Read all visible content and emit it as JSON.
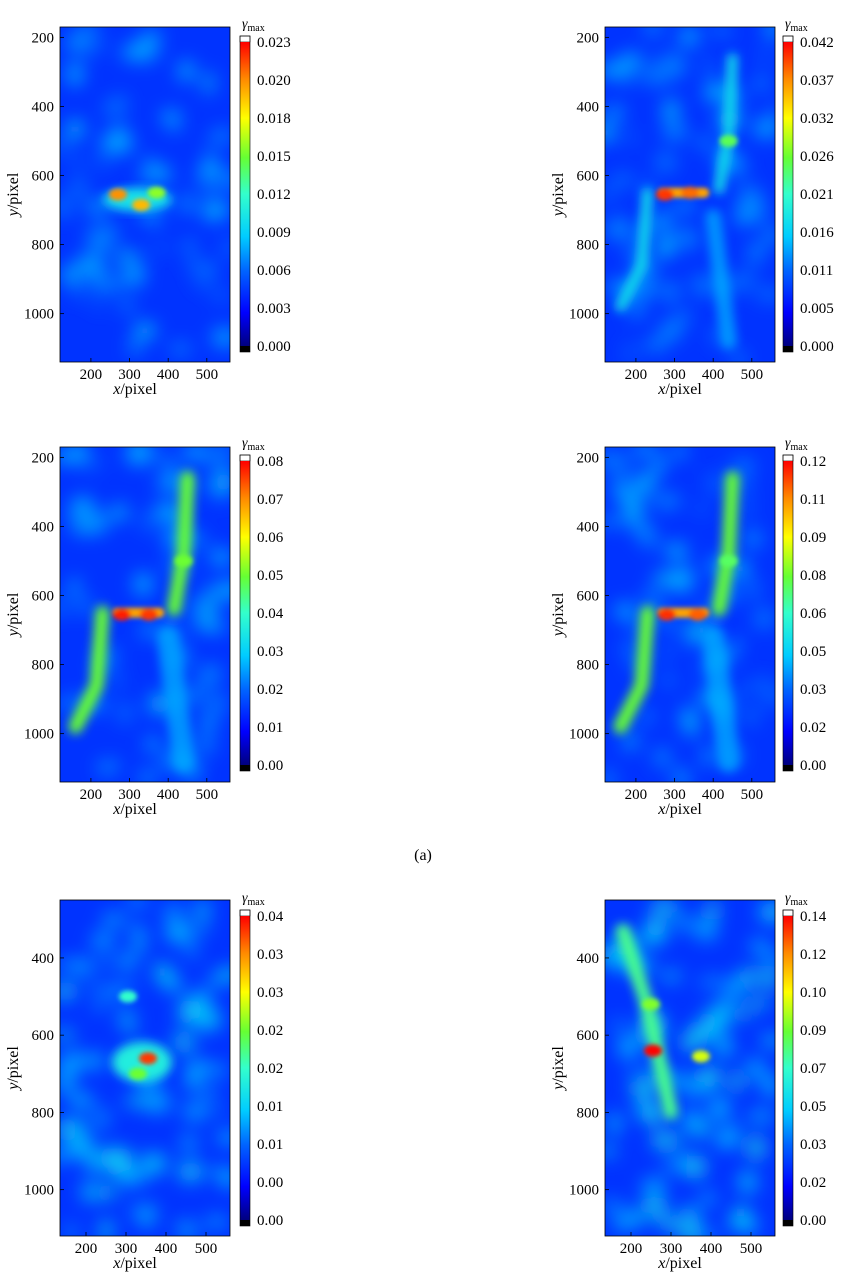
{
  "figure_label": "(a)",
  "colorbar_title_base": "γ",
  "colorbar_title_sub": "max",
  "chart_data": [
    {
      "type": "heatmap",
      "title": "",
      "xlabel_var": "x",
      "xlabel_unit": "/pixel",
      "ylabel_var": "y",
      "ylabel_unit": "/pixel",
      "xlim": [
        120,
        560
      ],
      "ylim": [
        170,
        1140
      ],
      "xticks": [
        "200",
        "300",
        "400",
        "500"
      ],
      "yticks": [
        "200",
        "400",
        "600",
        "800",
        "1000"
      ],
      "colorbar_ticks": [
        "0.023",
        "0.020",
        "0.018",
        "0.015",
        "0.012",
        "0.009",
        "0.006",
        "0.003",
        "0.000"
      ],
      "colorbar_range": [
        0.0,
        0.023
      ],
      "pattern": "initial",
      "hotspots": [
        {
          "x": 270,
          "y": 655,
          "value": 0.02
        },
        {
          "x": 330,
          "y": 685,
          "value": 0.019
        },
        {
          "x": 370,
          "y": 650,
          "value": 0.015
        }
      ]
    },
    {
      "type": "heatmap",
      "title": "",
      "xlabel_var": "x",
      "xlabel_unit": "/pixel",
      "ylabel_var": "y",
      "ylabel_unit": "/pixel",
      "xlim": [
        120,
        560
      ],
      "ylim": [
        170,
        1140
      ],
      "xticks": [
        "200",
        "300",
        "400",
        "500"
      ],
      "yticks": [
        "200",
        "400",
        "600",
        "800",
        "1000"
      ],
      "colorbar_ticks": [
        "0.042",
        "0.037",
        "0.032",
        "0.026",
        "0.021",
        "0.016",
        "0.011",
        "0.005",
        "0.000"
      ],
      "colorbar_range": [
        0.0,
        0.042
      ],
      "pattern": "early-band",
      "hotspots": [
        {
          "x": 275,
          "y": 655,
          "value": 0.04
        },
        {
          "x": 340,
          "y": 650,
          "value": 0.038
        },
        {
          "x": 440,
          "y": 500,
          "value": 0.025
        }
      ]
    },
    {
      "type": "heatmap",
      "title": "",
      "xlabel_var": "x",
      "xlabel_unit": "/pixel",
      "ylabel_var": "y",
      "ylabel_unit": "/pixel",
      "xlim": [
        120,
        560
      ],
      "ylim": [
        170,
        1140
      ],
      "xticks": [
        "200",
        "300",
        "400",
        "500"
      ],
      "yticks": [
        "200",
        "400",
        "600",
        "800",
        "1000"
      ],
      "colorbar_ticks": [
        "0.08",
        "0.07",
        "0.06",
        "0.05",
        "0.04",
        "0.03",
        "0.02",
        "0.01",
        "0.00"
      ],
      "colorbar_range": [
        0.0,
        0.08
      ],
      "pattern": "h-band",
      "hotspots": [
        {
          "x": 280,
          "y": 655,
          "value": 0.078
        },
        {
          "x": 350,
          "y": 655,
          "value": 0.076
        },
        {
          "x": 440,
          "y": 500,
          "value": 0.05
        }
      ]
    },
    {
      "type": "heatmap",
      "title": "",
      "xlabel_var": "x",
      "xlabel_unit": "/pixel",
      "ylabel_var": "y",
      "ylabel_unit": "/pixel",
      "xlim": [
        120,
        560
      ],
      "ylim": [
        170,
        1140
      ],
      "xticks": [
        "200",
        "300",
        "400",
        "500"
      ],
      "yticks": [
        "200",
        "400",
        "600",
        "800",
        "1000"
      ],
      "colorbar_ticks": [
        "0.12",
        "0.11",
        "0.09",
        "0.08",
        "0.06",
        "0.05",
        "0.03",
        "0.02",
        "0.00"
      ],
      "colorbar_range": [
        0.0,
        0.12
      ],
      "pattern": "h-band",
      "hotspots": [
        {
          "x": 280,
          "y": 655,
          "value": 0.115
        },
        {
          "x": 360,
          "y": 655,
          "value": 0.11
        },
        {
          "x": 440,
          "y": 500,
          "value": 0.07
        }
      ]
    },
    {
      "type": "heatmap",
      "title": "",
      "xlabel_var": "x",
      "xlabel_unit": "/pixel",
      "ylabel_var": "y",
      "ylabel_unit": "/pixel",
      "xlim": [
        135,
        560
      ],
      "ylim": [
        250,
        1120
      ],
      "xticks": [
        "200",
        "300",
        "400",
        "500"
      ],
      "yticks": [
        "400",
        "600",
        "800",
        "1000"
      ],
      "colorbar_ticks": [
        "0.04",
        "0.03",
        "0.03",
        "0.02",
        "0.02",
        "0.01",
        "0.01",
        "0.00",
        "0.00"
      ],
      "colorbar_range": [
        0.0,
        0.04
      ],
      "pattern": "diffuse",
      "hotspots": [
        {
          "x": 355,
          "y": 660,
          "value": 0.038
        },
        {
          "x": 330,
          "y": 700,
          "value": 0.025
        },
        {
          "x": 305,
          "y": 500,
          "value": 0.02
        }
      ]
    },
    {
      "type": "heatmap",
      "title": "",
      "xlabel_var": "x",
      "xlabel_unit": "/pixel",
      "ylabel_var": "y",
      "ylabel_unit": "/pixel",
      "xlim": [
        135,
        560
      ],
      "ylim": [
        250,
        1120
      ],
      "xticks": [
        "200",
        "300",
        "400",
        "500"
      ],
      "yticks": [
        "400",
        "600",
        "800",
        "1000"
      ],
      "colorbar_ticks": [
        "0.14",
        "0.12",
        "0.10",
        "0.09",
        "0.07",
        "0.05",
        "0.03",
        "0.02",
        "0.00"
      ],
      "colorbar_range": [
        0.0,
        0.14
      ],
      "pattern": "diagonal",
      "hotspots": [
        {
          "x": 255,
          "y": 640,
          "value": 0.14
        },
        {
          "x": 375,
          "y": 655,
          "value": 0.1
        },
        {
          "x": 250,
          "y": 520,
          "value": 0.09
        }
      ]
    }
  ]
}
